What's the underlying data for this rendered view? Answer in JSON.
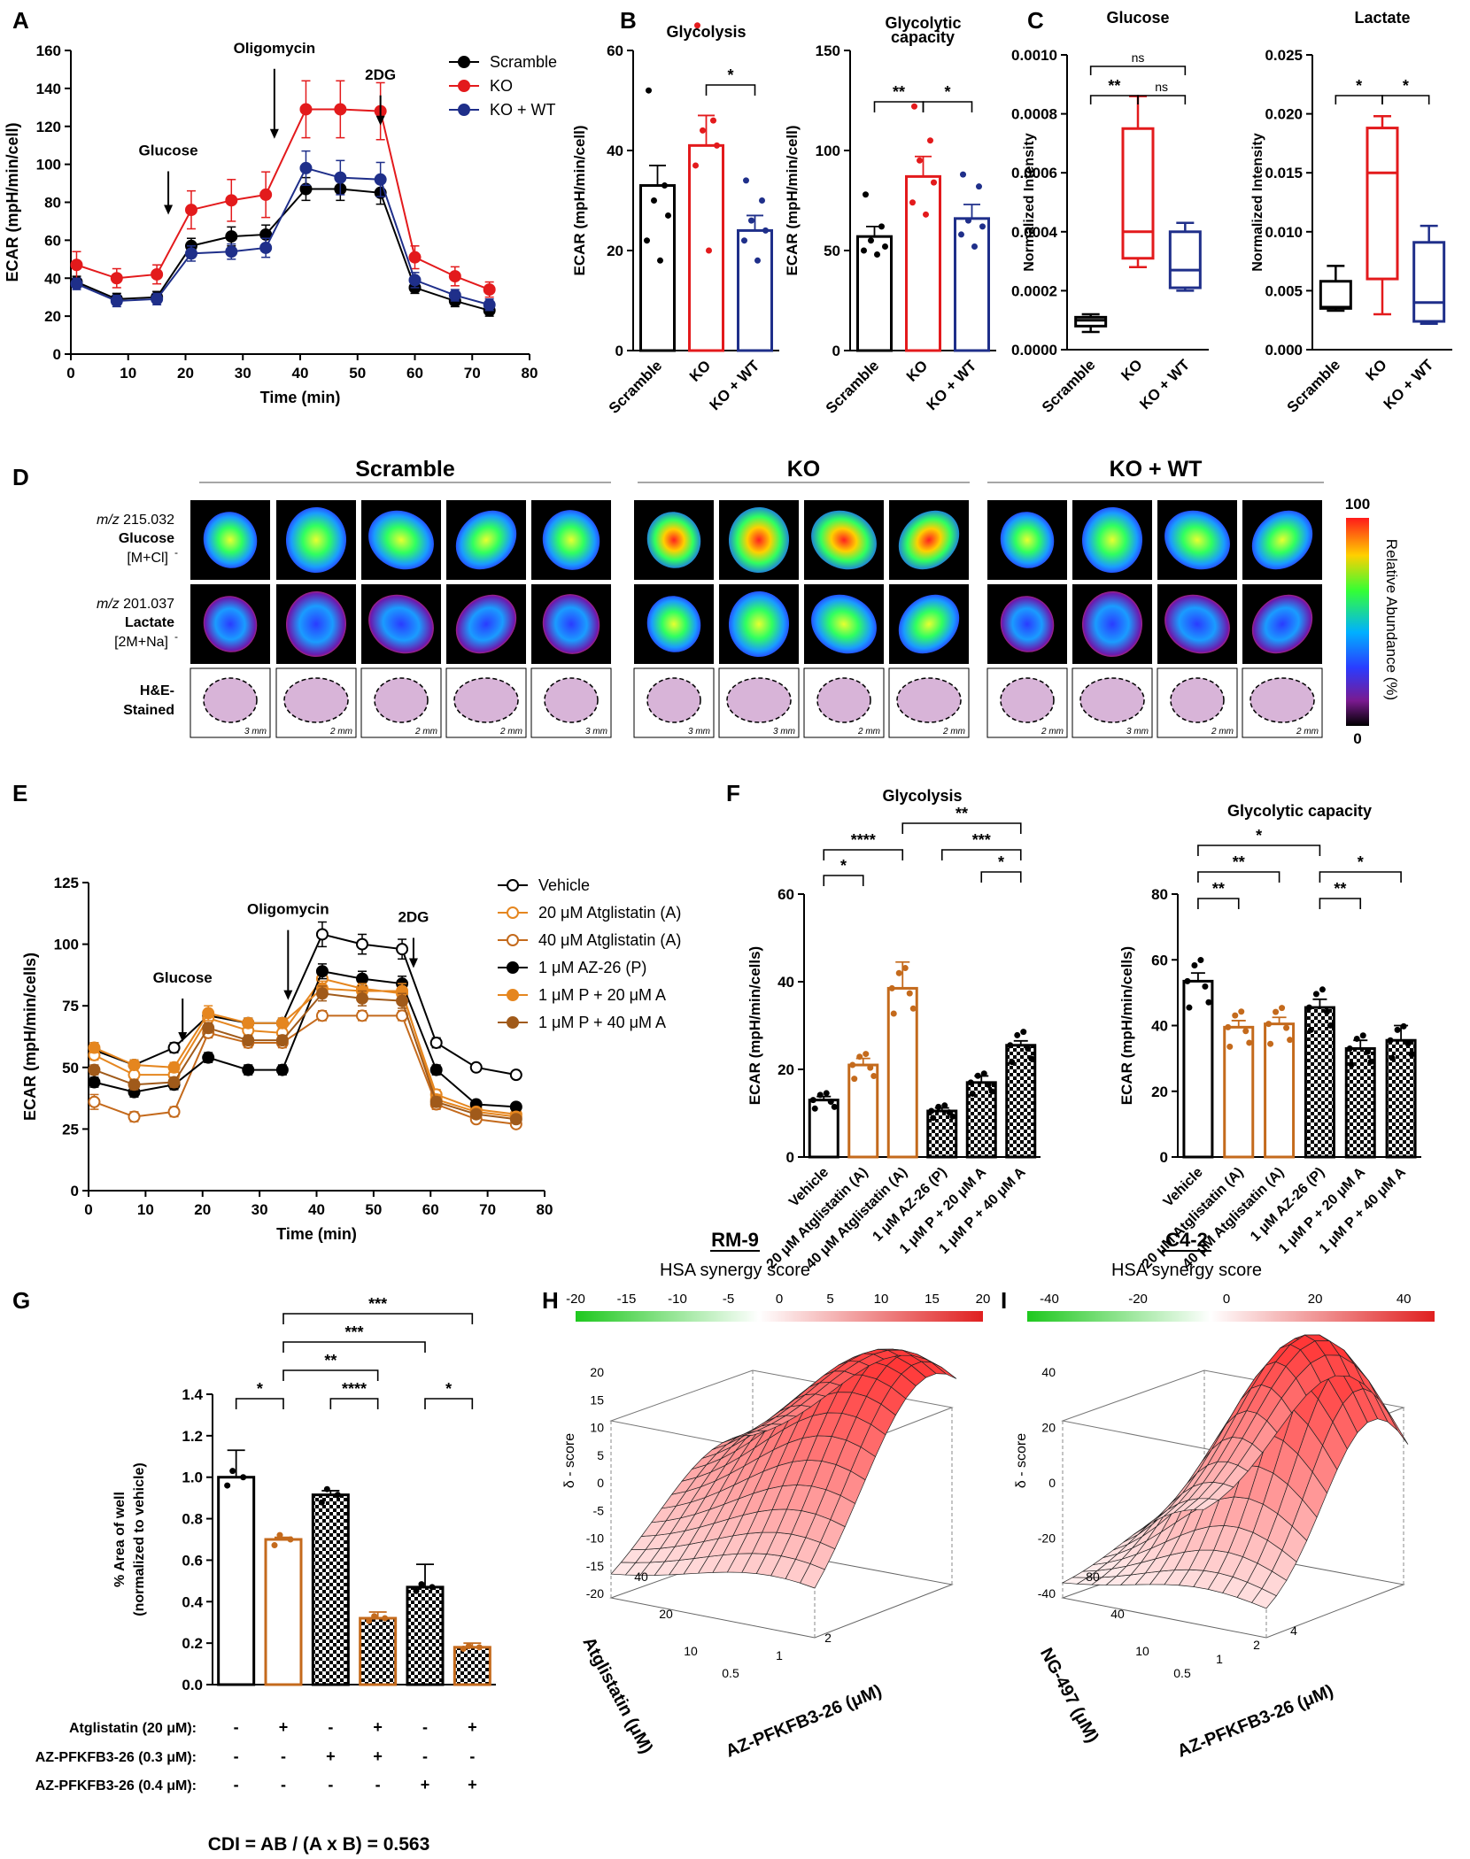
{
  "panel_letters": [
    "A",
    "B",
    "C",
    "D",
    "E",
    "F",
    "G",
    "H",
    "I"
  ],
  "colors": {
    "black": "#000000",
    "red": "#e31a1c",
    "navy": "#1f2f8a",
    "orange": "#c46a1c",
    "orange2": "#e5861f",
    "brown": "#a05a1a",
    "green": "#1ec81e",
    "heatred": "#e02020"
  },
  "chart_data": [
    {
      "id": "A",
      "type": "line",
      "ylabel": "ECAR (mpH/min/cell)",
      "xlabel": "Time (min)",
      "xlim": [
        0,
        80
      ],
      "ylim": [
        0,
        160
      ],
      "xticks": [
        0,
        10,
        20,
        30,
        40,
        50,
        60,
        70,
        80
      ],
      "yticks": [
        0,
        20,
        40,
        60,
        80,
        100,
        120,
        140,
        160
      ],
      "annotations": [
        {
          "text": "Glucose",
          "x": 17,
          "y": 73
        },
        {
          "text": "Oligomycin",
          "x": 35.5,
          "y": 113
        },
        {
          "text": "2DG",
          "x": 54,
          "y": 120
        }
      ],
      "x": [
        1,
        8,
        15,
        21,
        28,
        34,
        41,
        47,
        54,
        60,
        67,
        73
      ],
      "series": [
        {
          "name": "Scramble",
          "color": "#000000",
          "values": [
            38,
            29,
            30,
            57,
            62,
            63,
            87,
            87,
            85,
            35,
            28,
            23
          ],
          "err": [
            3,
            3,
            3,
            4,
            5,
            5,
            6,
            6,
            6,
            3,
            3,
            3
          ]
        },
        {
          "name": "KO",
          "color": "#e31a1c",
          "values": [
            47,
            40,
            42,
            76,
            81,
            84,
            129,
            129,
            128,
            51,
            41,
            34
          ],
          "err": [
            7,
            5,
            5,
            10,
            11,
            12,
            15,
            15,
            15,
            6,
            5,
            4
          ]
        },
        {
          "name": "KO + WT",
          "color": "#1f2f8a",
          "values": [
            37,
            28,
            29,
            53,
            54,
            56,
            98,
            93,
            92,
            39,
            31,
            26
          ],
          "err": [
            3,
            3,
            3,
            4,
            4,
            5,
            9,
            9,
            9,
            4,
            3,
            3
          ]
        }
      ]
    },
    {
      "id": "B1",
      "type": "bar",
      "title": "Glycolysis",
      "ylabel": "ECAR (mpH/min/cell)",
      "ylim": [
        0,
        60
      ],
      "yticks": [
        0,
        20,
        40,
        60
      ],
      "categories": [
        "Scramble",
        "KO",
        "KO + WT"
      ],
      "values": [
        33,
        41,
        24
      ],
      "err": [
        4,
        6,
        3
      ],
      "colors": [
        "#000000",
        "#e31a1c",
        "#1f2f8a"
      ],
      "points": [
        [
          52,
          33,
          30,
          27,
          22,
          18
        ],
        [
          65,
          46,
          44,
          41,
          37,
          20
        ],
        [
          34,
          30,
          26,
          24,
          22,
          18
        ]
      ],
      "significance": [
        {
          "from": 1,
          "to": 2,
          "label": "*"
        }
      ]
    },
    {
      "id": "B2",
      "type": "bar",
      "title": "Glycolytic capacity",
      "ylabel": "ECAR (mpH/min/cell)",
      "ylim": [
        0,
        150
      ],
      "yticks": [
        0,
        50,
        100,
        150
      ],
      "categories": [
        "Scramble",
        "KO",
        "KO + WT"
      ],
      "values": [
        57,
        87,
        66
      ],
      "err": [
        5,
        10,
        7
      ],
      "colors": [
        "#000000",
        "#e31a1c",
        "#1f2f8a"
      ],
      "points": [
        [
          78,
          62,
          55,
          52,
          50,
          48
        ],
        [
          122,
          105,
          95,
          84,
          74,
          68
        ],
        [
          88,
          82,
          65,
          62,
          58,
          52
        ]
      ],
      "significance": [
        {
          "from": 0,
          "to": 1,
          "label": "**"
        },
        {
          "from": 1,
          "to": 2,
          "label": "*"
        }
      ]
    },
    {
      "id": "C1",
      "type": "box",
      "title": "Glucose",
      "ylabel": "Normalized Intensity",
      "ylim": [
        0,
        0.001
      ],
      "yticks": [
        "0.0000",
        "0.0002",
        "0.0004",
        "0.0006",
        "0.0008",
        "0.0010"
      ],
      "ytick_values": [
        0,
        0.0002,
        0.0004,
        0.0006,
        0.0008,
        0.001
      ],
      "categories": [
        "Scramble",
        "KO",
        "KO + WT"
      ],
      "colors": [
        "#000000",
        "#e31a1c",
        "#1f2f8a"
      ],
      "boxes": [
        {
          "min": 6e-05,
          "q1": 8e-05,
          "median": 0.0001,
          "q3": 0.00011,
          "max": 0.00012
        },
        {
          "min": 0.00028,
          "q1": 0.00031,
          "median": 0.0004,
          "q3": 0.00075,
          "max": 0.00086
        },
        {
          "min": 0.0002,
          "q1": 0.00021,
          "median": 0.00027,
          "q3": 0.0004,
          "max": 0.00043
        }
      ],
      "significance": [
        {
          "from": 0,
          "to": 1,
          "label": "**"
        },
        {
          "from": 1,
          "to": 2,
          "label": "ns"
        },
        {
          "from": 0,
          "to": 2,
          "label": "ns"
        }
      ]
    },
    {
      "id": "C2",
      "type": "box",
      "title": "Lactate",
      "ylabel": "Normalized Intensity",
      "ylim": [
        0,
        0.025
      ],
      "yticks": [
        "0.000",
        "0.005",
        "0.010",
        "0.015",
        "0.020",
        "0.025"
      ],
      "ytick_values": [
        0,
        0.005,
        0.01,
        0.015,
        0.02,
        0.025
      ],
      "categories": [
        "Scramble",
        "KO",
        "KO + WT"
      ],
      "colors": [
        "#000000",
        "#e31a1c",
        "#1f2f8a"
      ],
      "boxes": [
        {
          "min": 0.0033,
          "q1": 0.0035,
          "median": 0.0036,
          "q3": 0.0058,
          "max": 0.0071
        },
        {
          "min": 0.003,
          "q1": 0.006,
          "median": 0.015,
          "q3": 0.0188,
          "max": 0.0198
        },
        {
          "min": 0.0022,
          "q1": 0.0024,
          "median": 0.004,
          "q3": 0.0091,
          "max": 0.0105
        }
      ],
      "significance": [
        {
          "from": 0,
          "to": 1,
          "label": "*"
        },
        {
          "from": 1,
          "to": 2,
          "label": "*"
        }
      ]
    },
    {
      "id": "E",
      "type": "line",
      "ylabel": "ECAR (mpH/min/cells)",
      "xlabel": "Time (min)",
      "xlim": [
        0,
        80
      ],
      "ylim": [
        0,
        125
      ],
      "xticks": [
        0,
        10,
        20,
        30,
        40,
        50,
        60,
        70,
        80
      ],
      "yticks": [
        0,
        25,
        50,
        75,
        100,
        125
      ],
      "annotations": [
        {
          "text": "Glucose",
          "x": 16.5,
          "y": 60
        },
        {
          "text": "Oligomycin",
          "x": 35,
          "y": 77
        },
        {
          "text": "2DG",
          "x": 57,
          "y": 90
        }
      ],
      "x": [
        1,
        8,
        15,
        21,
        28,
        34,
        41,
        48,
        55,
        61,
        68,
        75
      ],
      "series": [
        {
          "name": "Vehicle",
          "color": "#000000",
          "open": true,
          "values": [
            57,
            51,
            58,
            71,
            68,
            68,
            104,
            100,
            98,
            60,
            50,
            47
          ],
          "err": [
            3,
            2,
            2,
            2,
            2,
            2,
            5,
            4,
            4,
            2,
            1,
            1
          ]
        },
        {
          "name": "20 μM Atglistatin (A)",
          "color": "#e5861f",
          "open": true,
          "values": [
            55,
            47,
            47,
            70,
            65,
            64,
            86,
            82,
            80,
            39,
            33,
            31
          ],
          "err": [
            2,
            2,
            2,
            3,
            2,
            2,
            3,
            3,
            3,
            2,
            1,
            1
          ]
        },
        {
          "name": "40 μM Atglistatin (A)",
          "color": "#c46a1c",
          "open": true,
          "values": [
            36,
            30,
            32,
            64,
            60,
            60,
            71,
            71,
            71,
            35,
            29,
            27
          ],
          "err": [
            3,
            2,
            2,
            2,
            2,
            2,
            2,
            2,
            2,
            2,
            1,
            1
          ]
        },
        {
          "name": "1 μM AZ-26 (P)",
          "color": "#000000",
          "open": false,
          "values": [
            44,
            40,
            43,
            54,
            49,
            49,
            89,
            86,
            84,
            49,
            35,
            34
          ],
          "err": [
            2,
            2,
            2,
            2,
            2,
            2,
            3,
            3,
            3,
            2,
            1,
            1
          ]
        },
        {
          "name": "1 μM P + 20 μM A",
          "color": "#e5861f",
          "open": false,
          "values": [
            58,
            51,
            50,
            72,
            68,
            68,
            82,
            81,
            81,
            37,
            32,
            30
          ],
          "err": [
            2,
            2,
            2,
            3,
            2,
            2,
            3,
            3,
            3,
            2,
            1,
            1
          ]
        },
        {
          "name": "1 μM P + 40 μM A",
          "color": "#a05a1a",
          "open": false,
          "values": [
            49,
            43,
            44,
            66,
            61,
            61,
            80,
            78,
            77,
            36,
            31,
            29
          ],
          "err": [
            2,
            2,
            2,
            2,
            2,
            2,
            3,
            3,
            3,
            2,
            1,
            1
          ]
        }
      ]
    },
    {
      "id": "F1",
      "type": "bar",
      "title": "Glycolysis",
      "ylabel": "ECAR (mpH/min/cells)",
      "ylim": [
        0,
        60
      ],
      "yticks": [
        0,
        20,
        40,
        60
      ],
      "categories": [
        "Vehicle",
        "20 μM Atglistatin (A)",
        "40 μM Atglistatin (A)",
        "1 μM AZ-26 (P)",
        "1 μM P + 20 μM A",
        "1 μM P + 40 μM A"
      ],
      "values": [
        13,
        21,
        38.5,
        10.5,
        17,
        25.5
      ],
      "err": [
        0.8,
        1.5,
        6,
        0.7,
        1.5,
        1.0
      ],
      "styles": [
        "open-black",
        "open-orange",
        "open-orange",
        "check",
        "check",
        "check"
      ],
      "significance": [
        {
          "from": 0,
          "to": 1,
          "label": "*"
        },
        {
          "from": 0,
          "to": 2,
          "label": "****"
        },
        {
          "from": 2,
          "to": 5,
          "label": "**"
        },
        {
          "from": 3,
          "to": 5,
          "label": "***"
        },
        {
          "from": 4,
          "to": 5,
          "label": "*"
        }
      ]
    },
    {
      "id": "F2",
      "type": "bar",
      "title": "Glycolytic capacity",
      "ylabel": "ECAR (mpH/min/cells)",
      "ylim": [
        0,
        80
      ],
      "yticks": [
        0,
        20,
        40,
        60,
        80
      ],
      "categories": [
        "Vehicle",
        "20 μM Atglistatin (A)",
        "40 μM Atglistatin (A)",
        "1 μM AZ-26 (P)",
        "1 μM P + 20 μM A",
        "1 μM P + 40 μM A"
      ],
      "values": [
        53.5,
        39.5,
        40.5,
        45.5,
        33,
        35.5
      ],
      "err": [
        2.5,
        2,
        2,
        2.5,
        2.5,
        4.5
      ],
      "styles": [
        "open-black",
        "open-orange",
        "open-orange",
        "check",
        "check",
        "check"
      ],
      "significance": [
        {
          "from": 0,
          "to": 1,
          "label": "**"
        },
        {
          "from": 0,
          "to": 2,
          "label": "**"
        },
        {
          "from": 0,
          "to": 3,
          "label": "*"
        },
        {
          "from": 3,
          "to": 4,
          "label": "**"
        },
        {
          "from": 3,
          "to": 5,
          "label": "*"
        }
      ]
    },
    {
      "id": "G",
      "type": "bar",
      "ylabel": "% Area of well",
      "ylabel2": "(normalized to vehicle)",
      "ylim": [
        0,
        1.4
      ],
      "yticks": [
        "0.0",
        "0.2",
        "0.4",
        "0.6",
        "0.8",
        "1.0",
        "1.2",
        "1.4"
      ],
      "ytick_values": [
        0,
        0.2,
        0.4,
        0.6,
        0.8,
        1.0,
        1.2,
        1.4
      ],
      "values": [
        1.0,
        0.7,
        0.915,
        0.32,
        0.47,
        0.18
      ],
      "err": [
        0.13,
        0.01,
        0.02,
        0.03,
        0.11,
        0.02
      ],
      "styles": [
        "open-black",
        "open-orange",
        "check",
        "check-orange",
        "check",
        "check-orange"
      ],
      "row_labels": [
        "Atglistatin (20 μM):",
        "AZ-PFKFB3-26 (0.3 μM):",
        "AZ-PFKFB3-26 (0.4 μM):"
      ],
      "condition_table": [
        [
          "-",
          "+",
          "-",
          "+",
          "-",
          "+"
        ],
        [
          "-",
          "-",
          "+",
          "+",
          "-",
          "-"
        ],
        [
          "-",
          "-",
          "-",
          "-",
          "+",
          "+"
        ]
      ],
      "significance": [
        {
          "from": 0,
          "to": 1,
          "label": "*"
        },
        {
          "from": 1,
          "to": 3,
          "label": "**"
        },
        {
          "from": 2,
          "to": 3,
          "label": "****"
        },
        {
          "from": 1,
          "to": 4,
          "label": "***"
        },
        {
          "from": 1,
          "to": 5,
          "label": "***"
        },
        {
          "from": 4,
          "to": 5,
          "label": "*"
        }
      ],
      "footer": "CDI = AB / (A x B) = 0.563"
    },
    {
      "id": "H",
      "type": "surface",
      "title": "RM-9",
      "colorbar_title": "HSA synergy score",
      "colorbar_ticks": [
        "-20",
        "-15",
        "-10",
        "-5",
        "0",
        "5",
        "10",
        "15",
        "20"
      ],
      "zticks": [
        "20",
        "15",
        "10",
        "5",
        "0",
        "-5",
        "-10",
        "-15",
        "-20"
      ],
      "zlabel": "δ - score",
      "xlabel": "AZ-PFKFB3-26 (μM)",
      "xticks": [
        "0.5",
        "1",
        "2"
      ],
      "ylabel": "Atglistatin (μM)",
      "yticks": [
        "10",
        "20",
        "40"
      ]
    },
    {
      "id": "I",
      "type": "surface",
      "title": "C4-2",
      "colorbar_title": "HSA synergy score",
      "colorbar_ticks": [
        "-40",
        "-20",
        "0",
        "20",
        "40"
      ],
      "zticks": [
        "40",
        "20",
        "0",
        "-20",
        "-40"
      ],
      "zlabel": "δ - score",
      "xlabel": "AZ-PFKFB3-26 (μM)",
      "xticks": [
        "0.5",
        "1",
        "2",
        "4"
      ],
      "ylabel": "NG-497 (μM)",
      "yticks": [
        "10",
        "40",
        "80"
      ]
    }
  ],
  "panel_d": {
    "groups": [
      "Scramble",
      "KO",
      "KO + WT"
    ],
    "row_labels": [
      {
        "mz": "m/z",
        "mass": "215.032",
        "name": "Glucose",
        "adduct": "[M+Cl]"
      },
      {
        "mz": "m/z",
        "mass": "201.037",
        "name": "Lactate",
        "adduct": "[2M+Na]"
      },
      {
        "name1": "H&E-",
        "name2": "Stained"
      }
    ],
    "scalebars": [
      "3 mm",
      "2 mm",
      "2 mm",
      "2 mm",
      "3 mm",
      "3 mm",
      "3 mm",
      "2 mm",
      "2 mm",
      "2 mm",
      "3 mm",
      "2 mm",
      "2 mm"
    ],
    "colorbar": {
      "title": "Relative Abundance (%)",
      "max": "100",
      "min": "0"
    }
  }
}
